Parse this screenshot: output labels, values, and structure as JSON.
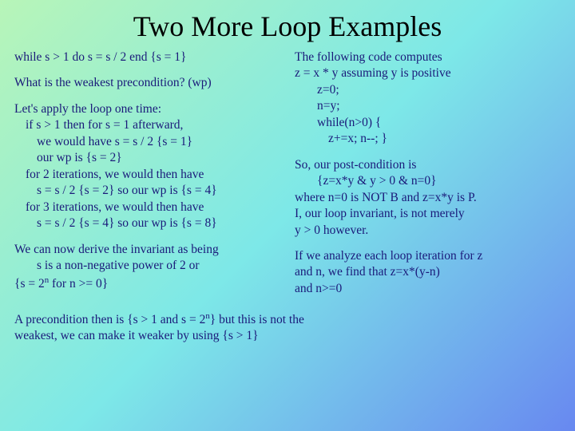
{
  "title": "Two More Loop Examples",
  "left": {
    "p1": "while s > 1 do s = s / 2 end {s = 1}",
    "p2": "What is the weakest precondition? (wp)",
    "p3a": "Let's apply the loop one time:",
    "p3b": "if s > 1 then for s = 1 afterward,",
    "p3c": "we would have s = s / 2 {s = 1}",
    "p3d": "our wp is {s = 2}",
    "p3e": "for 2 iterations, we would then have",
    "p3f": "s = s / 2 {s = 2} so our wp is {s = 4}",
    "p3g": "for 3 iterations, we would then have",
    "p3h": "s = s / 2 {s = 4} so our wp is {s = 8}",
    "p4a": "We can now derive the invariant as being",
    "p4b": "s is a non-negative power of 2 or",
    "p4c_pre": "{s = 2",
    "p4c_sup": "n",
    "p4c_post": " for n >= 0}"
  },
  "right": {
    "p1a": "The following code computes",
    "p1b": "z = x * y assuming y is positive",
    "p1c": "z=0;",
    "p1d": "n=y;",
    "p1e": "while(n>0) {",
    "p1f": "z+=x;  n--; }",
    "p2a": "So, our post-condition is",
    "p2b": "{z=x*y & y > 0 & n=0}",
    "p2c": "where n=0 is NOT B and z=x*y is P.",
    "p2d": "I, our loop invariant, is not merely",
    "p2e": "y > 0 however.",
    "p3a": "If we analyze each loop iteration for z",
    "p3b": "and n, we find that z=x*(y-n)",
    "p3c": "and n>=0"
  },
  "footer": {
    "a_pre": "A precondition then is {s > 1 and s = 2",
    "a_sup": "n",
    "a_post": "} but this is not the",
    "b": "weakest, we can make it weaker by using {s > 1}"
  }
}
